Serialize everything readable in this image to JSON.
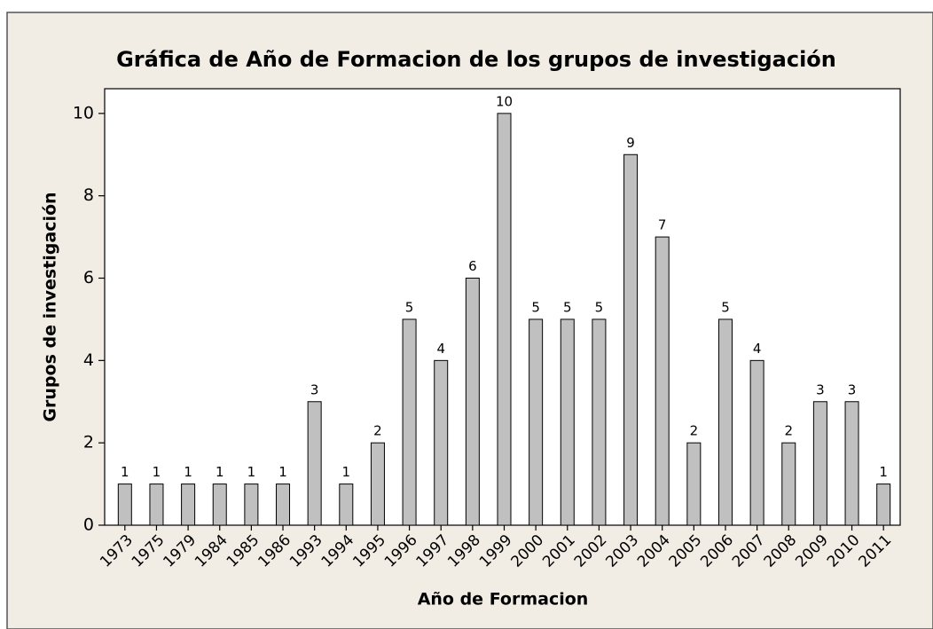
{
  "chart_data": {
    "type": "bar",
    "title": "Gráfica de Año de Formacion de los grupos de investigación",
    "x_label": "Año de Formacion",
    "y_label": "Grupos de investigación",
    "categories": [
      "1973",
      "1975",
      "1979",
      "1984",
      "1985",
      "1986",
      "1993",
      "1994",
      "1995",
      "1996",
      "1997",
      "1998",
      "1999",
      "2000",
      "2001",
      "2002",
      "2003",
      "2004",
      "2005",
      "2006",
      "2007",
      "2008",
      "2009",
      "2010",
      "2011"
    ],
    "values": [
      1,
      1,
      1,
      1,
      1,
      1,
      3,
      1,
      2,
      5,
      4,
      6,
      10,
      5,
      5,
      5,
      9,
      7,
      2,
      5,
      4,
      2,
      3,
      3,
      1
    ],
    "color": "#c0c0c0",
    "ylim": [
      0,
      10.6
    ],
    "yticks": [
      0,
      2,
      4,
      6,
      8,
      10
    ],
    "grid": false
  }
}
